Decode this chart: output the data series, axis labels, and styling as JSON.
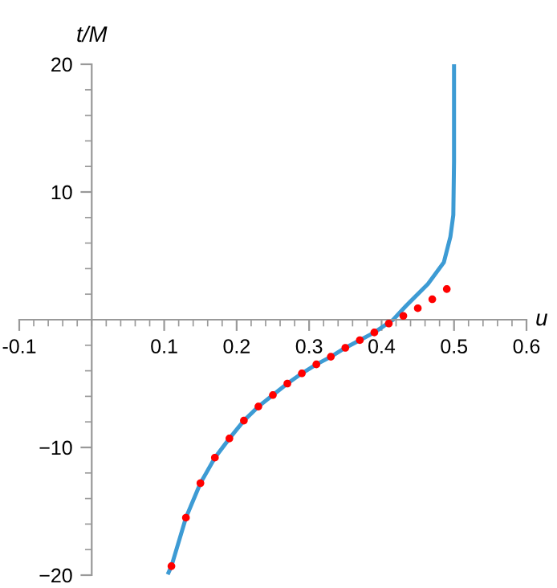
{
  "chart_data": {
    "type": "line",
    "xlabel": "u",
    "ylabel": "t/M",
    "xlim": [
      -0.1,
      0.6
    ],
    "ylim": [
      -20,
      20
    ],
    "xticks": [
      -0.1,
      0.1,
      0.2,
      0.3,
      0.4,
      0.5,
      0.6
    ],
    "yticks": [
      -20,
      -10,
      10,
      20
    ],
    "grid": false,
    "legend": false,
    "series": [
      {
        "color": "#3d9bd4",
        "marker": "none",
        "line_style": "solid",
        "x": [
          0.106,
          0.11,
          0.13,
          0.15,
          0.17,
          0.19,
          0.21,
          0.23,
          0.25,
          0.27,
          0.29,
          0.31,
          0.33,
          0.35,
          0.37,
          0.39,
          0.416,
          0.434,
          0.464,
          0.486,
          0.495,
          0.499,
          0.5,
          0.5
        ],
        "values": [
          -19.8,
          -19.3,
          -15.5,
          -12.8,
          -10.8,
          -9.3,
          -7.9,
          -6.8,
          -5.9,
          -5.0,
          -4.2,
          -3.5,
          -2.9,
          -2.2,
          -1.6,
          -1.0,
          0,
          1.1,
          2.8,
          4.5,
          6.5,
          8.2,
          12.4,
          20
        ]
      },
      {
        "type": "scatter",
        "color": "#ff0000",
        "marker": "circle",
        "x": [
          0.11,
          0.13,
          0.15,
          0.17,
          0.19,
          0.21,
          0.23,
          0.25,
          0.27,
          0.29,
          0.31,
          0.33,
          0.35,
          0.37,
          0.39,
          0.41,
          0.43,
          0.45,
          0.47,
          0.49
        ],
        "values": [
          -19.3,
          -15.5,
          -12.8,
          -10.8,
          -9.3,
          -7.9,
          -6.8,
          -5.9,
          -5.0,
          -4.2,
          -3.5,
          -2.9,
          -2.2,
          -1.6,
          -1.0,
          -0.3,
          0.3,
          0.9,
          1.6,
          2.4
        ]
      }
    ]
  }
}
